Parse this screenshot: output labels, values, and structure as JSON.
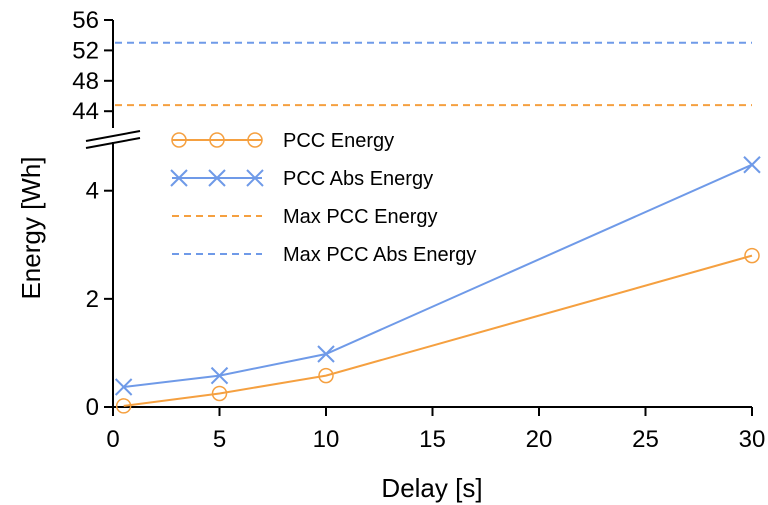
{
  "chart_data": {
    "type": "line",
    "xlabel": "Delay [s]",
    "ylabel": "Energy [Wh]",
    "xlim": [
      0,
      30
    ],
    "x_ticks": [
      0,
      5,
      10,
      15,
      20,
      25,
      30
    ],
    "y_axis_broken": true,
    "y_lower_range": [
      0,
      5.4
    ],
    "y_lower_ticks": [
      0,
      2,
      4
    ],
    "y_upper_range": [
      43.5,
      56
    ],
    "y_upper_ticks": [
      44,
      48,
      52,
      56
    ],
    "grid": false,
    "legend_position": "upper-left",
    "series": [
      {
        "name": "PCC Energy",
        "color": "#f5a040",
        "marker": "circle",
        "x": [
          0.5,
          5,
          10,
          30
        ],
        "y": [
          0.02,
          0.25,
          0.58,
          2.8
        ]
      },
      {
        "name": "PCC Abs Energy",
        "color": "#6f9ae8",
        "marker": "x",
        "x": [
          0.5,
          5,
          10,
          30
        ],
        "y": [
          0.37,
          0.58,
          0.98,
          4.48
        ]
      }
    ],
    "reference_lines": [
      {
        "name": "Max PCC Energy",
        "color": "#f5a040",
        "style": "dashed",
        "y": 44.8
      },
      {
        "name": "Max PCC Abs Energy",
        "color": "#6f9ae8",
        "style": "dashed",
        "y": 53
      }
    ]
  }
}
